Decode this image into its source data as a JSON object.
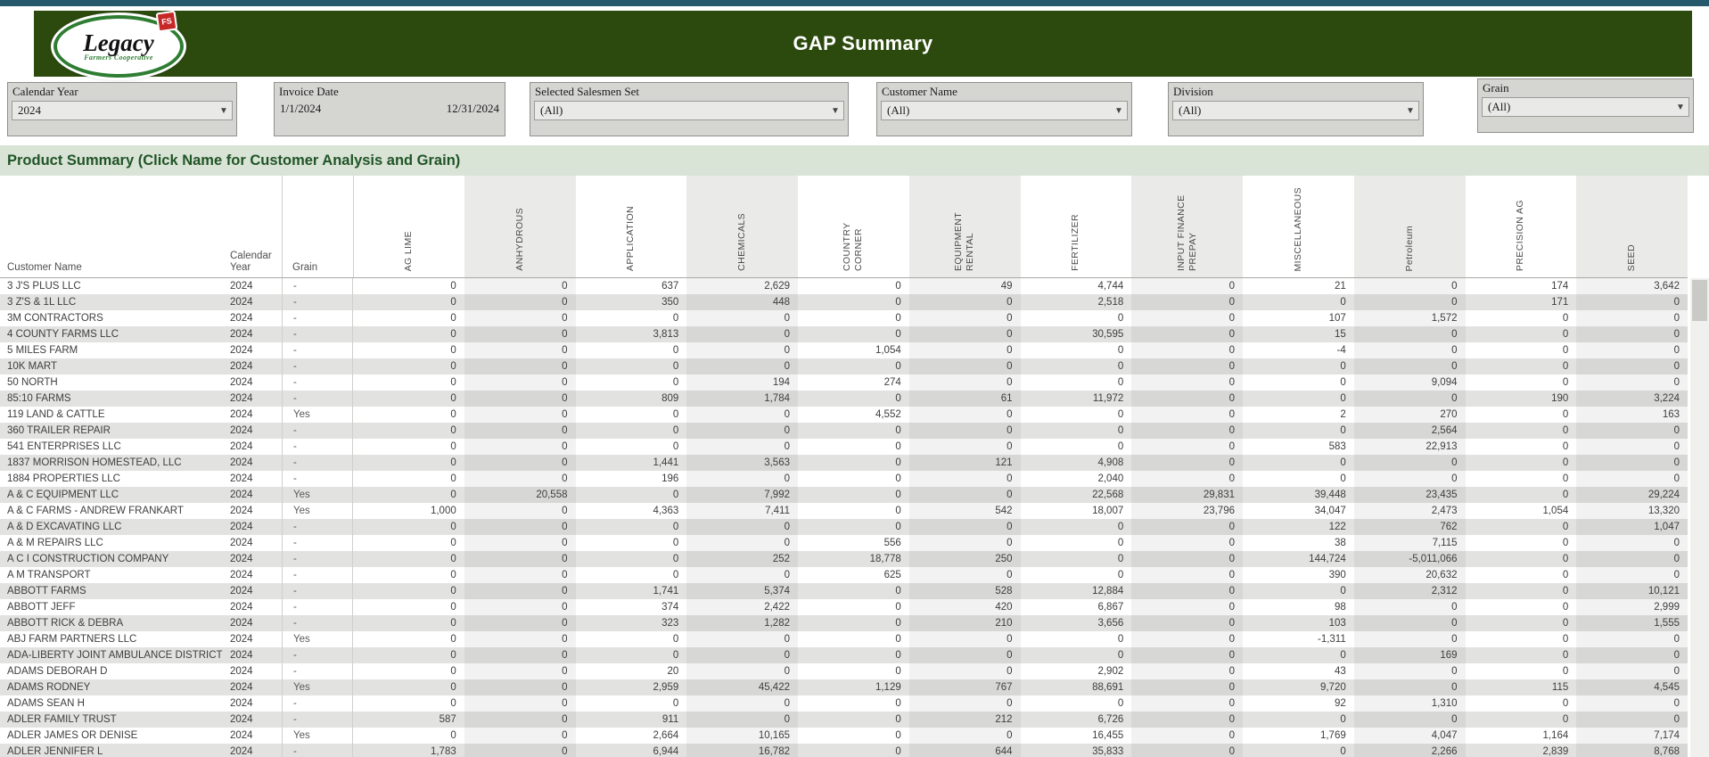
{
  "header": {
    "title": "GAP Summary",
    "logo_brand": "Legacy",
    "logo_sub": "Farmers Cooperative",
    "logo_badge": "FS"
  },
  "filters": [
    {
      "id": "calendar-year",
      "label": "Calendar Year",
      "type": "dropdown",
      "value": "2024"
    },
    {
      "id": "invoice-date",
      "label": "Invoice Date",
      "type": "range",
      "start": "1/1/2024",
      "end": "12/31/2024"
    },
    {
      "id": "selected-salesmen-set",
      "label": "Selected Salesmen Set",
      "type": "dropdown",
      "value": "(All)"
    },
    {
      "id": "customer-name",
      "label": "Customer Name",
      "type": "dropdown",
      "value": "(All)"
    },
    {
      "id": "division",
      "label": "Division",
      "type": "dropdown",
      "value": "(All)"
    },
    {
      "id": "grain",
      "label": "Grain",
      "type": "dropdown",
      "value": "(All)"
    }
  ],
  "section_title": "Product Summary (Click Name for Customer Analysis and Grain)",
  "table": {
    "row_headers": {
      "customer": "Customer Name",
      "year_line1": "Calendar",
      "year_line2": "Year",
      "grain": "Grain"
    },
    "product_columns": [
      "AG LIME",
      "ANHYDROUS",
      "APPLICATION",
      "CHEMICALS",
      "COUNTRY CORNER",
      "EQUIPMENT RENTAL",
      "FERTILIZER",
      "INPUT FINANCE PREPAY",
      "MISCELLANEOUS",
      "Petroleum",
      "PRECISION AG",
      "SEED"
    ],
    "rows": [
      {
        "customer": "3 J'S PLUS LLC",
        "year": "2024",
        "grain": "-",
        "values": [
          "0",
          "0",
          "637",
          "2,629",
          "0",
          "49",
          "4,744",
          "0",
          "21",
          "0",
          "174",
          "3,642"
        ]
      },
      {
        "customer": "3 Z'S & 1L LLC",
        "year": "2024",
        "grain": "-",
        "values": [
          "0",
          "0",
          "350",
          "448",
          "0",
          "0",
          "2,518",
          "0",
          "0",
          "0",
          "171",
          "0"
        ]
      },
      {
        "customer": "3M CONTRACTORS",
        "year": "2024",
        "grain": "-",
        "values": [
          "0",
          "0",
          "0",
          "0",
          "0",
          "0",
          "0",
          "0",
          "107",
          "1,572",
          "0",
          "0"
        ]
      },
      {
        "customer": "4 COUNTY FARMS LLC",
        "year": "2024",
        "grain": "-",
        "values": [
          "0",
          "0",
          "3,813",
          "0",
          "0",
          "0",
          "30,595",
          "0",
          "15",
          "0",
          "0",
          "0"
        ]
      },
      {
        "customer": "5 MILES FARM",
        "year": "2024",
        "grain": "-",
        "values": [
          "0",
          "0",
          "0",
          "0",
          "1,054",
          "0",
          "0",
          "0",
          "-4",
          "0",
          "0",
          "0"
        ]
      },
      {
        "customer": "10K MART",
        "year": "2024",
        "grain": "-",
        "values": [
          "0",
          "0",
          "0",
          "0",
          "0",
          "0",
          "0",
          "0",
          "0",
          "0",
          "0",
          "0"
        ]
      },
      {
        "customer": "50 NORTH",
        "year": "2024",
        "grain": "-",
        "values": [
          "0",
          "0",
          "0",
          "194",
          "274",
          "0",
          "0",
          "0",
          "0",
          "9,094",
          "0",
          "0"
        ]
      },
      {
        "customer": "85:10 FARMS",
        "year": "2024",
        "grain": "-",
        "values": [
          "0",
          "0",
          "809",
          "1,784",
          "0",
          "61",
          "11,972",
          "0",
          "0",
          "0",
          "190",
          "3,224"
        ]
      },
      {
        "customer": "119 LAND & CATTLE",
        "year": "2024",
        "grain": "Yes",
        "values": [
          "0",
          "0",
          "0",
          "0",
          "4,552",
          "0",
          "0",
          "0",
          "2",
          "270",
          "0",
          "163"
        ]
      },
      {
        "customer": "360 TRAILER REPAIR",
        "year": "2024",
        "grain": "-",
        "values": [
          "0",
          "0",
          "0",
          "0",
          "0",
          "0",
          "0",
          "0",
          "0",
          "2,564",
          "0",
          "0"
        ]
      },
      {
        "customer": "541 ENTERPRISES LLC",
        "year": "2024",
        "grain": "-",
        "values": [
          "0",
          "0",
          "0",
          "0",
          "0",
          "0",
          "0",
          "0",
          "583",
          "22,913",
          "0",
          "0"
        ]
      },
      {
        "customer": "1837 MORRISON HOMESTEAD, LLC",
        "year": "2024",
        "grain": "-",
        "values": [
          "0",
          "0",
          "1,441",
          "3,563",
          "0",
          "121",
          "4,908",
          "0",
          "0",
          "0",
          "0",
          "0"
        ]
      },
      {
        "customer": "1884 PROPERTIES LLC",
        "year": "2024",
        "grain": "-",
        "values": [
          "0",
          "0",
          "196",
          "0",
          "0",
          "0",
          "2,040",
          "0",
          "0",
          "0",
          "0",
          "0"
        ]
      },
      {
        "customer": "A & C EQUIPMENT LLC",
        "year": "2024",
        "grain": "Yes",
        "values": [
          "0",
          "20,558",
          "0",
          "7,992",
          "0",
          "0",
          "22,568",
          "29,831",
          "39,448",
          "23,435",
          "0",
          "29,224"
        ]
      },
      {
        "customer": "A & C FARMS - ANDREW FRANKART",
        "year": "2024",
        "grain": "Yes",
        "values": [
          "1,000",
          "0",
          "4,363",
          "7,411",
          "0",
          "542",
          "18,007",
          "23,796",
          "34,047",
          "2,473",
          "1,054",
          "13,320"
        ]
      },
      {
        "customer": "A & D EXCAVATING LLC",
        "year": "2024",
        "grain": "-",
        "values": [
          "0",
          "0",
          "0",
          "0",
          "0",
          "0",
          "0",
          "0",
          "122",
          "762",
          "0",
          "1,047"
        ]
      },
      {
        "customer": "A & M REPAIRS LLC",
        "year": "2024",
        "grain": "-",
        "values": [
          "0",
          "0",
          "0",
          "0",
          "556",
          "0",
          "0",
          "0",
          "38",
          "7,115",
          "0",
          "0"
        ]
      },
      {
        "customer": "A C I CONSTRUCTION COMPANY",
        "year": "2024",
        "grain": "-",
        "values": [
          "0",
          "0",
          "0",
          "252",
          "18,778",
          "250",
          "0",
          "0",
          "144,724",
          "-5,011,066",
          "0",
          "0"
        ]
      },
      {
        "customer": "A M TRANSPORT",
        "year": "2024",
        "grain": "-",
        "values": [
          "0",
          "0",
          "0",
          "0",
          "625",
          "0",
          "0",
          "0",
          "390",
          "20,632",
          "0",
          "0"
        ]
      },
      {
        "customer": "ABBOTT FARMS",
        "year": "2024",
        "grain": "-",
        "values": [
          "0",
          "0",
          "1,741",
          "5,374",
          "0",
          "528",
          "12,884",
          "0",
          "0",
          "2,312",
          "0",
          "10,121"
        ]
      },
      {
        "customer": "ABBOTT JEFF",
        "year": "2024",
        "grain": "-",
        "values": [
          "0",
          "0",
          "374",
          "2,422",
          "0",
          "420",
          "6,867",
          "0",
          "98",
          "0",
          "0",
          "2,999"
        ]
      },
      {
        "customer": "ABBOTT RICK & DEBRA",
        "year": "2024",
        "grain": "-",
        "values": [
          "0",
          "0",
          "323",
          "1,282",
          "0",
          "210",
          "3,656",
          "0",
          "103",
          "0",
          "0",
          "1,555"
        ]
      },
      {
        "customer": "ABJ FARM PARTNERS LLC",
        "year": "2024",
        "grain": "Yes",
        "values": [
          "0",
          "0",
          "0",
          "0",
          "0",
          "0",
          "0",
          "0",
          "-1,311",
          "0",
          "0",
          "0"
        ]
      },
      {
        "customer": "ADA-LIBERTY JOINT AMBULANCE DISTRICT",
        "year": "2024",
        "grain": "-",
        "values": [
          "0",
          "0",
          "0",
          "0",
          "0",
          "0",
          "0",
          "0",
          "0",
          "169",
          "0",
          "0"
        ]
      },
      {
        "customer": "ADAMS DEBORAH D",
        "year": "2024",
        "grain": "-",
        "values": [
          "0",
          "0",
          "20",
          "0",
          "0",
          "0",
          "2,902",
          "0",
          "43",
          "0",
          "0",
          "0"
        ]
      },
      {
        "customer": "ADAMS RODNEY",
        "year": "2024",
        "grain": "Yes",
        "values": [
          "0",
          "0",
          "2,959",
          "45,422",
          "1,129",
          "767",
          "88,691",
          "0",
          "9,720",
          "0",
          "115",
          "4,545"
        ]
      },
      {
        "customer": "ADAMS SEAN H",
        "year": "2024",
        "grain": "-",
        "values": [
          "0",
          "0",
          "0",
          "0",
          "0",
          "0",
          "0",
          "0",
          "92",
          "1,310",
          "0",
          "0"
        ]
      },
      {
        "customer": "ADLER FAMILY TRUST",
        "year": "2024",
        "grain": "-",
        "values": [
          "587",
          "0",
          "911",
          "0",
          "0",
          "212",
          "6,726",
          "0",
          "0",
          "0",
          "0",
          "0"
        ]
      },
      {
        "customer": "ADLER JAMES OR DENISE",
        "year": "2024",
        "grain": "Yes",
        "values": [
          "0",
          "0",
          "2,664",
          "10,165",
          "0",
          "0",
          "16,455",
          "0",
          "1,769",
          "4,047",
          "1,164",
          "7,174"
        ]
      },
      {
        "customer": "ADLER JENNIFER L",
        "year": "2024",
        "grain": "-",
        "values": [
          "1,783",
          "0",
          "6,944",
          "16,782",
          "0",
          "644",
          "35,833",
          "0",
          "0",
          "2,266",
          "2,839",
          "8,768"
        ]
      }
    ]
  },
  "colors": {
    "top_strip": "#26596C",
    "banner_green": "#2C4A0E",
    "band_background": "#D9E3D6",
    "band_text": "#205527",
    "filter_box": "#D5D5D2",
    "row_alternate": "#E2E2E0",
    "column_shade": "#EAEAE8",
    "badge_red": "#c62828"
  }
}
